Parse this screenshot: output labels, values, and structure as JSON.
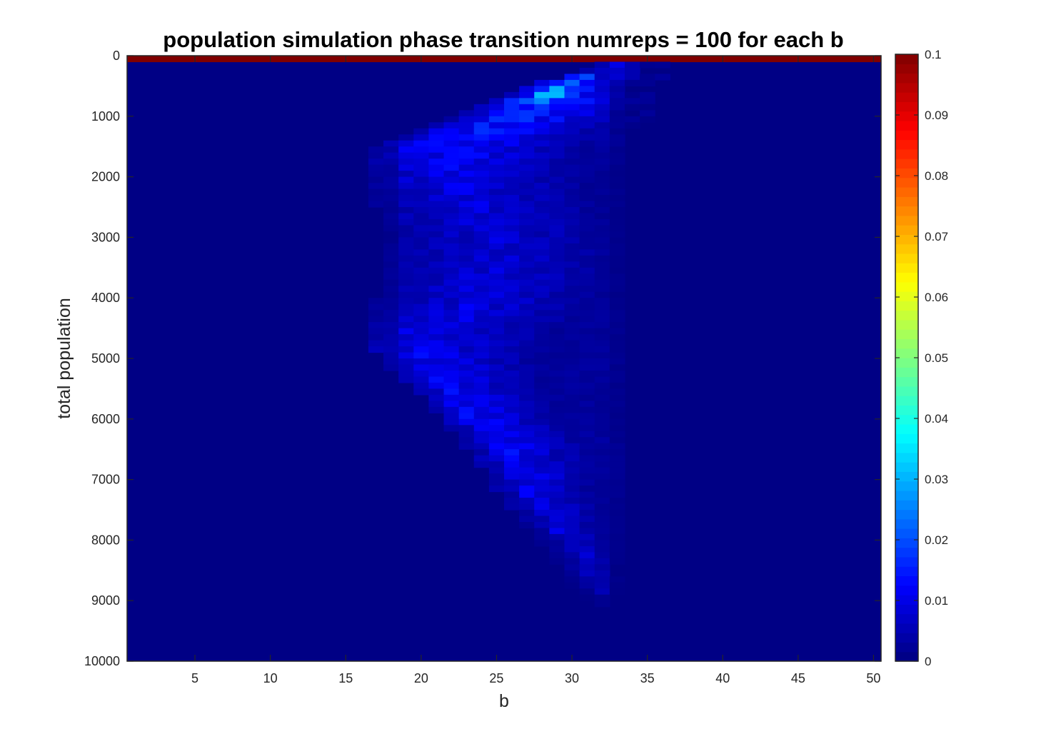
{
  "chart_data": {
    "type": "heatmap",
    "title": "population simulation phase transition numreps = 100 for each b",
    "xlabel": "b",
    "ylabel": "total population",
    "x_range": [
      0.5,
      50.5
    ],
    "y_range": [
      0,
      10000
    ],
    "y_reversed": true,
    "x_ticks": [
      5,
      10,
      15,
      20,
      25,
      30,
      35,
      40,
      45,
      50
    ],
    "x_tick_labels": [
      "5",
      "10",
      "15",
      "20",
      "25",
      "30",
      "35",
      "40",
      "45",
      "50"
    ],
    "y_ticks": [
      0,
      1000,
      2000,
      3000,
      4000,
      5000,
      6000,
      7000,
      8000,
      9000,
      10000
    ],
    "y_tick_labels": [
      "0",
      "1000",
      "2000",
      "3000",
      "4000",
      "5000",
      "6000",
      "7000",
      "8000",
      "9000",
      "10000"
    ],
    "colorbar": {
      "colormap": "jet",
      "range": [
        0,
        0.1
      ],
      "ticks": [
        0,
        0.01,
        0.02,
        0.03,
        0.04,
        0.05,
        0.06,
        0.07,
        0.08,
        0.09,
        0.1
      ],
      "tick_labels": [
        "0",
        "0.01",
        "0.02",
        "0.03",
        "0.04",
        "0.05",
        "0.06",
        "0.07",
        "0.08",
        "0.09",
        "0.1"
      ]
    },
    "grid": false,
    "b_values": [
      1,
      50,
      1
    ],
    "population_bin_width": 100,
    "top_row_value": 0.1,
    "background_value": 0.0005,
    "region_profile": [
      {
        "population": 0,
        "b_left": 33.5,
        "b_right": 33.5,
        "peak_b": 29.5,
        "peak": 0.032
      },
      {
        "population": 400,
        "b_left": 29.0,
        "b_right": 33.5,
        "peak_b": 29.5,
        "peak": 0.032
      },
      {
        "population": 1000,
        "b_left": 22.0,
        "b_right": 33.0,
        "peak_b": 27.0,
        "peak": 0.016
      },
      {
        "population": 1500,
        "b_left": 17.5,
        "b_right": 33.0,
        "peak_b": 22.0,
        "peak": 0.013
      },
      {
        "population": 2000,
        "b_left": 17.0,
        "b_right": 33.0,
        "peak_b": 22.0,
        "peak": 0.01
      },
      {
        "population": 3000,
        "b_left": 18.0,
        "b_right": 33.0,
        "peak_b": 25.0,
        "peak": 0.008
      },
      {
        "population": 4000,
        "b_left": 17.5,
        "b_right": 33.0,
        "peak_b": 24.0,
        "peak": 0.009
      },
      {
        "population": 4800,
        "b_left": 17.0,
        "b_right": 32.5,
        "peak_b": 19.5,
        "peak": 0.011
      },
      {
        "population": 5500,
        "b_left": 20.0,
        "b_right": 32.5,
        "peak_b": 21.5,
        "peak": 0.011
      },
      {
        "population": 6500,
        "b_left": 23.5,
        "b_right": 33.0,
        "peak_b": 25.5,
        "peak": 0.012
      },
      {
        "population": 7500,
        "b_left": 26.5,
        "b_right": 33.0,
        "peak_b": 28.0,
        "peak": 0.01
      },
      {
        "population": 8200,
        "b_left": 29.0,
        "b_right": 33.0,
        "peak_b": 30.5,
        "peak": 0.008
      },
      {
        "population": 8800,
        "b_left": 30.5,
        "b_right": 33.0,
        "peak_b": 31.5,
        "peak": 0.006
      },
      {
        "population": 9100,
        "b_left": 32.0,
        "b_right": 32.5,
        "peak_b": 32.0,
        "peak": 0.003
      }
    ]
  }
}
